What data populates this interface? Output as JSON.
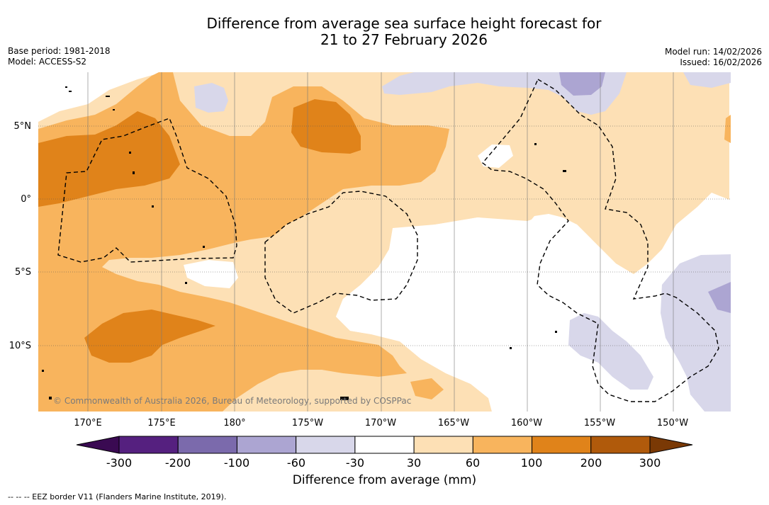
{
  "title": {
    "line1": "Difference from average sea surface height forecast for",
    "line2": "21 to 27 February 2026"
  },
  "meta": {
    "base_period": "Base period: 1981-2018",
    "model": "Model: ACCESS-S2",
    "model_run": "Model run: 14/02/2026",
    "issued": "Issued: 16/02/2026"
  },
  "map": {
    "copyright": "© Commonwealth of Australia 2026, Bureau of Meteorology, supported by COSPPac",
    "lat_labels": [
      "5°N",
      "0°",
      "5°S",
      "10°S"
    ],
    "lon_labels": [
      "170°E",
      "175°E",
      "180°",
      "175°W",
      "170°W",
      "165°W",
      "160°W",
      "155°W",
      "150°W"
    ]
  },
  "legend": {
    "title": "Difference from average (mm)",
    "ticks": [
      "-300",
      "-200",
      "-100",
      "-60",
      "-30",
      "30",
      "60",
      "100",
      "200",
      "300"
    ],
    "colors": {
      "below_min": "#3a0a52",
      "bins": [
        "#55207f",
        "#7b6aac",
        "#aca5d2",
        "#d8d7ea",
        "#ffffff",
        "#fde0b5",
        "#f8b45d",
        "#e0831a",
        "#b05a0b"
      ],
      "above_max": "#7a3905"
    }
  },
  "eez_note": "--  --  -- EEZ border V11 (Flanders Marine Institute, 2019)."
}
